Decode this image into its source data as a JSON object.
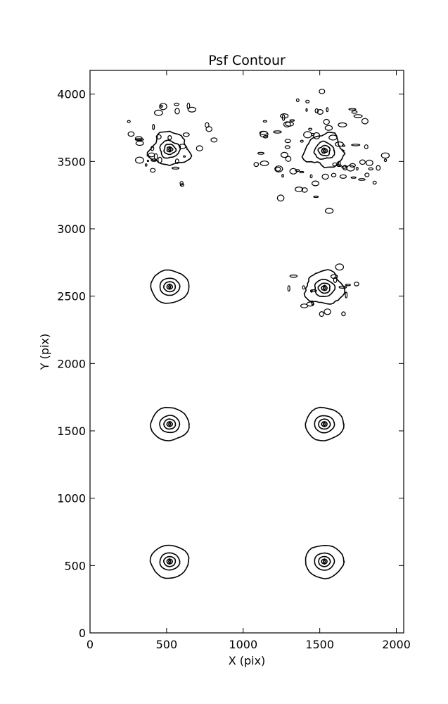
{
  "chart_data": {
    "type": "contour",
    "title": "Psf Contour",
    "xlabel": "X (pix)",
    "ylabel": "Y (pix)",
    "xlim": [
      0,
      2048
    ],
    "ylim": [
      0,
      4176
    ],
    "xticks": [
      0,
      500,
      1000,
      1500,
      2000
    ],
    "yticks": [
      0,
      500,
      1000,
      1500,
      2000,
      2500,
      3000,
      3500,
      4000
    ],
    "grid": false,
    "psf_centers": [
      {
        "x": 520,
        "y": 3590
      },
      {
        "x": 1530,
        "y": 3580
      },
      {
        "x": 520,
        "y": 2570
      },
      {
        "x": 1530,
        "y": 2560
      },
      {
        "x": 520,
        "y": 1550
      },
      {
        "x": 1530,
        "y": 1550
      },
      {
        "x": 520,
        "y": 530
      },
      {
        "x": 1530,
        "y": 530
      }
    ]
  }
}
